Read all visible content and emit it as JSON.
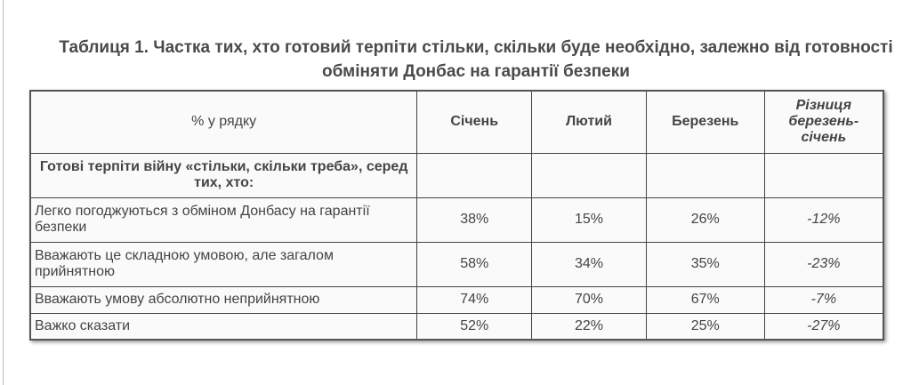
{
  "title": "Таблиця 1. Частка тих, хто готовий терпіти стільки, скільки буде необхідно, залежно від готовності обміняти Донбас на гарантії безпеки",
  "header": {
    "label": "% у рядку",
    "cols": [
      "Січень",
      "Лютий",
      "Березень"
    ],
    "diff": "Різниця березень-січень"
  },
  "group": "Готові терпіти війну «стільки, скільки треба», серед тих, хто:",
  "rows": [
    {
      "label": "Легко погоджуються з обміном Донбасу на гарантії безпеки",
      "values": [
        "38%",
        "15%",
        "26%"
      ],
      "diff": "-12%"
    },
    {
      "label": "Вважають це складною умовою, але загалом прийнятною",
      "values": [
        "58%",
        "34%",
        "35%"
      ],
      "diff": "-23%"
    },
    {
      "label": "Вважають умову абсолютно неприйнятною",
      "values": [
        "74%",
        "70%",
        "67%"
      ],
      "diff": "-7%"
    },
    {
      "label": "Важко сказати",
      "values": [
        "52%",
        "22%",
        "25%"
      ],
      "diff": "-27%"
    }
  ]
}
